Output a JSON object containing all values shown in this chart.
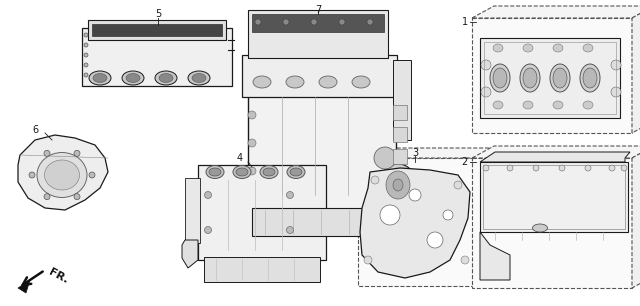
{
  "bg_color": "#ffffff",
  "line_color": "#1a1a1a",
  "fig_width": 6.4,
  "fig_height": 3.06,
  "dpi": 100,
  "gray_fill": "#f5f5f5",
  "dark_fill": "#d0d0d0",
  "mid_fill": "#e8e8e8",
  "dashed_color": "#555555",
  "label_fontsize": 7,
  "fr_fontsize": 8
}
